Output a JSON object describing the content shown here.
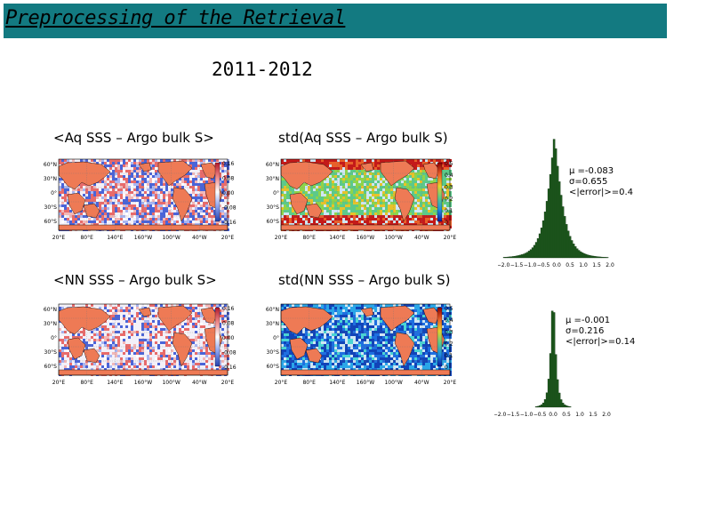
{
  "slide": {
    "title": "Preprocessing of the Retrieval",
    "subtitle": "2011-2012",
    "colors": {
      "title_bar": "#137a81",
      "land": "#ee7a55",
      "histogram": "#1e5a1e"
    }
  },
  "panels": {
    "aq_mean": {
      "label": "<Aq SSS – Argo bulk S>",
      "colorbar": [
        "0.16",
        "0.08",
        "0.00",
        "-0.08",
        "-0.16"
      ]
    },
    "aq_std": {
      "label": "std(Aq SSS – Argo bulk S)",
      "colorbar": [
        "0.5",
        "0.4",
        "0.3",
        "0.2",
        "0.1",
        "0"
      ]
    },
    "nn_mean": {
      "label": "<NN SSS – Argo bulk S>",
      "colorbar": [
        "0.16",
        "0.08",
        "0.00",
        "-0.08",
        "-0.16"
      ]
    },
    "nn_std": {
      "label": "std(NN SSS – Argo bulk S)",
      "colorbar": [
        "0.5",
        "0.4",
        "0.3",
        "0.2",
        "0.1",
        "0"
      ]
    }
  },
  "map_axes": {
    "lat_ticks": [
      "60°N",
      "30°N",
      "0°",
      "30°S",
      "60°S"
    ],
    "lon_ticks": [
      "20°E",
      "80°E",
      "140°E",
      "160°W",
      "100°W",
      "40°W",
      "20°E"
    ]
  },
  "histograms": {
    "x_ticks": [
      "−2.0",
      "−1.5",
      "−1.0",
      "−0.5",
      "0.0",
      "0.5",
      "1.0",
      "1.5",
      "2.0"
    ],
    "aq": {
      "mu": "μ =-0.083",
      "sigma": "σ=0.655",
      "error": "<|error|>=0.4"
    },
    "nn": {
      "mu": "μ =-0.001",
      "sigma": "σ=0.216",
      "error": "<|error|>=0.14"
    }
  },
  "chart_data": [
    {
      "type": "bar",
      "title": "",
      "x": [
        -2.0,
        -1.5,
        -1.0,
        -0.5,
        0.0,
        0.5,
        1.0,
        1.5,
        2.0
      ],
      "distribution": {
        "mu": -0.083,
        "sigma": 0.655,
        "mean_abs_error": 0.4
      },
      "xlim": [
        -2.0,
        2.0
      ]
    },
    {
      "type": "bar",
      "title": "",
      "x": [
        -2.0,
        -1.5,
        -1.0,
        -0.5,
        0.0,
        0.5,
        1.0,
        1.5,
        2.0
      ],
      "distribution": {
        "mu": -0.001,
        "sigma": 0.216,
        "mean_abs_error": 0.14
      },
      "xlim": [
        -2.0,
        2.0
      ]
    }
  ]
}
